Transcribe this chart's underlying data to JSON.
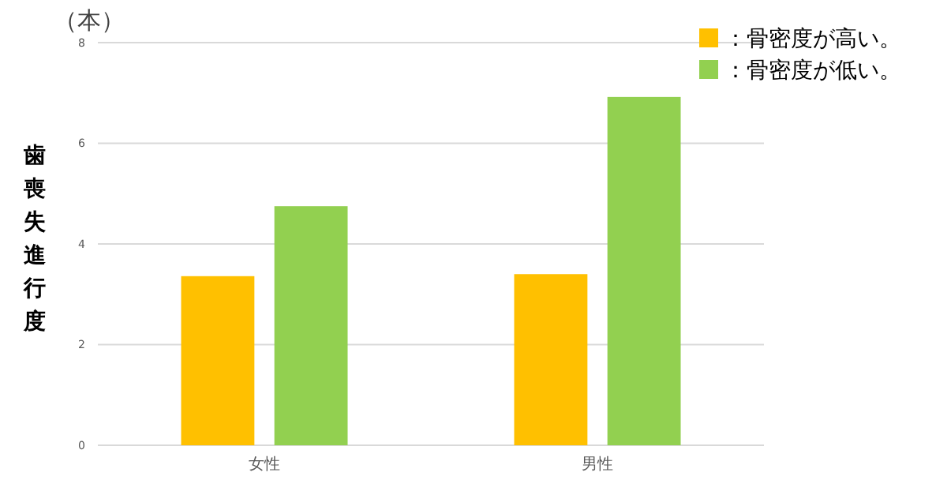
{
  "chart_data": {
    "type": "bar",
    "ylabel": "歯喪失進行度",
    "annotations": [
      "（本）"
    ],
    "categories": [
      "女性",
      "男性"
    ],
    "series": [
      {
        "name": "：骨密度が高い。",
        "color": "#ffc000",
        "values": [
          3.36,
          3.4
        ]
      },
      {
        "name": "：骨密度が低い。",
        "color": "#92d050",
        "values": [
          4.75,
          6.92
        ]
      }
    ],
    "ylim": [
      0,
      8
    ],
    "yticks": [
      0,
      2,
      4,
      6,
      8
    ],
    "grid": "y",
    "legend": "top right"
  }
}
